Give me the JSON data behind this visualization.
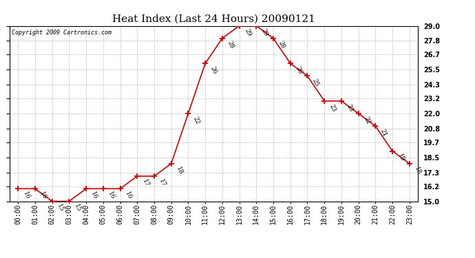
{
  "title": "Heat Index (Last 24 Hours) 20090121",
  "copyright": "Copyright 2009 Cartronics.com",
  "hours": [
    "00:00",
    "01:00",
    "02:00",
    "03:00",
    "04:00",
    "05:00",
    "06:00",
    "07:00",
    "08:00",
    "09:00",
    "10:00",
    "11:00",
    "12:00",
    "13:00",
    "14:00",
    "15:00",
    "16:00",
    "17:00",
    "18:00",
    "19:00",
    "20:00",
    "21:00",
    "22:00",
    "23:00"
  ],
  "values": [
    16,
    16,
    15,
    15,
    16,
    16,
    16,
    17,
    17,
    18,
    22,
    26,
    28,
    29,
    29,
    28,
    26,
    25,
    23,
    23,
    22,
    21,
    19,
    18
  ],
  "ylim": [
    15.0,
    29.0
  ],
  "yticks": [
    15.0,
    16.2,
    17.3,
    18.5,
    19.7,
    20.8,
    22.0,
    23.2,
    24.3,
    25.5,
    26.7,
    27.8,
    29.0
  ],
  "line_color": "#cc0000",
  "marker": "+",
  "marker_size": 6,
  "bg_color": "#ffffff",
  "grid_color": "#bbbbbb",
  "title_fontsize": 11,
  "tick_fontsize": 7,
  "annotation_fontsize": 6.5
}
